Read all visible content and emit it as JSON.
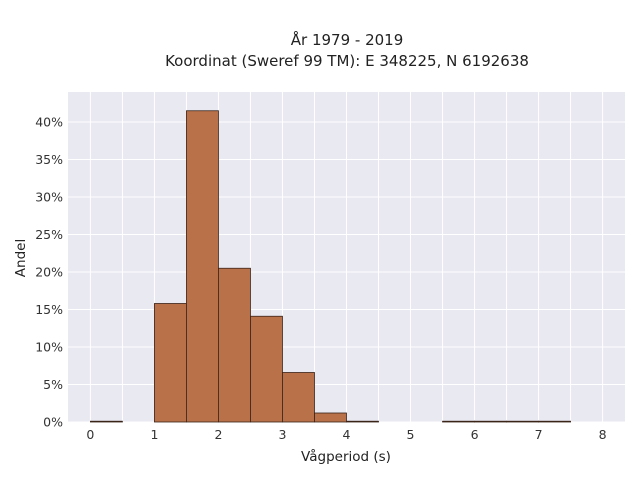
{
  "chart_data": {
    "type": "bar",
    "title": "År 1979 - 2019",
    "subtitle": "Koordinat (Sweref 99 TM): E 348225, N 6192638",
    "xlabel": "Vågperiod (s)",
    "ylabel": "Andel",
    "xlim": [
      -0.35,
      8.35
    ],
    "ylim": [
      0,
      0.44
    ],
    "x_ticks": [
      0,
      1,
      2,
      3,
      4,
      5,
      6,
      7,
      8
    ],
    "y_ticks": [
      0,
      0.05,
      0.1,
      0.15,
      0.2,
      0.25,
      0.3,
      0.35,
      0.4
    ],
    "y_tick_labels": [
      "0%",
      "5%",
      "10%",
      "15%",
      "20%",
      "25%",
      "30%",
      "35%",
      "40%"
    ],
    "bin_width": 0.5,
    "bins": [
      {
        "start": 0.0,
        "value": 0.0005
      },
      {
        "start": 0.5,
        "value": 0.0
      },
      {
        "start": 1.0,
        "value": 0.158
      },
      {
        "start": 1.5,
        "value": 0.415
      },
      {
        "start": 2.0,
        "value": 0.205
      },
      {
        "start": 2.5,
        "value": 0.141
      },
      {
        "start": 3.0,
        "value": 0.066
      },
      {
        "start": 3.5,
        "value": 0.012
      },
      {
        "start": 4.0,
        "value": 0.0005
      },
      {
        "start": 4.5,
        "value": 0.0
      },
      {
        "start": 5.0,
        "value": 0.0
      },
      {
        "start": 5.5,
        "value": 0.0005
      },
      {
        "start": 6.0,
        "value": 0.0005
      },
      {
        "start": 6.5,
        "value": 0.0005
      },
      {
        "start": 7.0,
        "value": 0.0005
      }
    ],
    "grid": true,
    "colors": {
      "bar_fill": "#b9714a",
      "bar_edge": "#3a2418",
      "plot_bg": "#e9e9f2",
      "grid": "#ffffff"
    }
  }
}
